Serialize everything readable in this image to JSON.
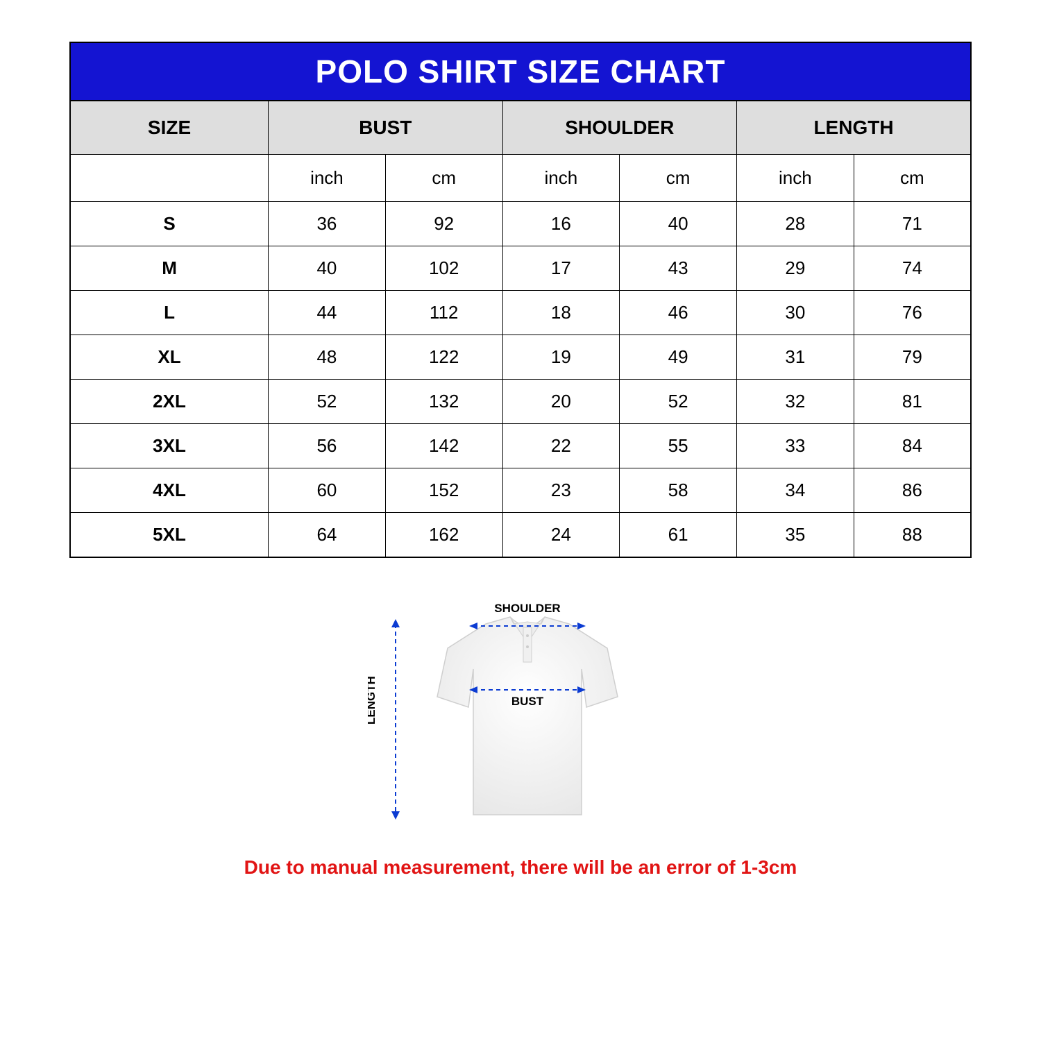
{
  "title": "POLO SHIRT SIZE CHART",
  "headers": {
    "size": "SIZE",
    "bust": "BUST",
    "shoulder": "SHOULDER",
    "length": "LENGTH"
  },
  "units": {
    "inch": "inch",
    "cm": "cm"
  },
  "rows": [
    {
      "size": "S",
      "bust_in": "36",
      "bust_cm": "92",
      "shoulder_in": "16",
      "shoulder_cm": "40",
      "length_in": "28",
      "length_cm": "71"
    },
    {
      "size": "M",
      "bust_in": "40",
      "bust_cm": "102",
      "shoulder_in": "17",
      "shoulder_cm": "43",
      "length_in": "29",
      "length_cm": "74"
    },
    {
      "size": "L",
      "bust_in": "44",
      "bust_cm": "112",
      "shoulder_in": "18",
      "shoulder_cm": "46",
      "length_in": "30",
      "length_cm": "76"
    },
    {
      "size": "XL",
      "bust_in": "48",
      "bust_cm": "122",
      "shoulder_in": "19",
      "shoulder_cm": "49",
      "length_in": "31",
      "length_cm": "79"
    },
    {
      "size": "2XL",
      "bust_in": "52",
      "bust_cm": "132",
      "shoulder_in": "20",
      "shoulder_cm": "52",
      "length_in": "32",
      "length_cm": "81"
    },
    {
      "size": "3XL",
      "bust_in": "56",
      "bust_cm": "142",
      "shoulder_in": "22",
      "shoulder_cm": "55",
      "length_in": "33",
      "length_cm": "84"
    },
    {
      "size": "4XL",
      "bust_in": "60",
      "bust_cm": "152",
      "shoulder_in": "23",
      "shoulder_cm": "58",
      "length_in": "34",
      "length_cm": "86"
    },
    {
      "size": "5XL",
      "bust_in": "64",
      "bust_cm": "162",
      "shoulder_in": "24",
      "shoulder_cm": "61",
      "length_in": "35",
      "length_cm": "88"
    }
  ],
  "diagram": {
    "shoulder_label": "SHOULDER",
    "bust_label": "BUST",
    "length_label": "LENGTH",
    "line_color": "#0b3bd2",
    "shirt_fill": "#f5f5f5",
    "shirt_stroke": "#d0d0d0"
  },
  "disclaimer": "Due to manual measurement, there will be an error of 1-3cm",
  "colors": {
    "title_bg": "#1414d2",
    "title_text": "#ffffff",
    "header_bg": "#dedede",
    "border": "#000000",
    "disclaimer": "#e11414",
    "background": "#ffffff"
  },
  "table_style": {
    "col_widths_pct": [
      22,
      13,
      13,
      13,
      13,
      13,
      13
    ],
    "title_fontsize": 46,
    "header_fontsize": 28,
    "cell_fontsize": 26
  }
}
